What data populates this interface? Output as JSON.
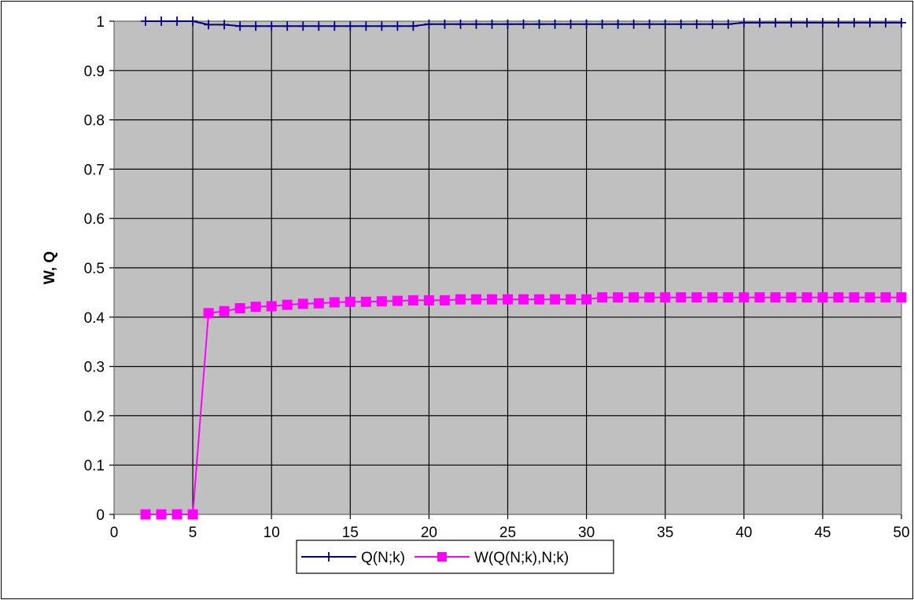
{
  "chart_data": {
    "type": "line",
    "title": "",
    "xlabel": "",
    "ylabel": "W, Q",
    "xlim": [
      0,
      50
    ],
    "ylim": [
      0,
      1
    ],
    "x_ticks": [
      "0",
      "5",
      "10",
      "15",
      "20",
      "25",
      "30",
      "35",
      "40",
      "45",
      "50"
    ],
    "y_ticks": [
      "0",
      "0.1",
      "0.2",
      "0.3",
      "0.4",
      "0.5",
      "0.6",
      "0.7",
      "0.8",
      "0.9",
      "1"
    ],
    "grid": true,
    "legend_position": "bottom",
    "x": [
      2,
      3,
      4,
      5,
      6,
      7,
      8,
      9,
      10,
      11,
      12,
      13,
      14,
      15,
      16,
      17,
      18,
      19,
      20,
      21,
      22,
      23,
      24,
      25,
      26,
      27,
      28,
      29,
      30,
      31,
      32,
      33,
      34,
      35,
      36,
      37,
      38,
      39,
      40,
      41,
      42,
      43,
      44,
      45,
      46,
      47,
      48,
      49,
      50
    ],
    "series": [
      {
        "name": "Q(N;k)",
        "color": "#000080",
        "marker": "plus",
        "values": [
          1,
          1,
          1,
          1,
          0.993,
          0.993,
          0.99,
          0.99,
          0.99,
          0.99,
          0.99,
          0.99,
          0.99,
          0.99,
          0.99,
          0.99,
          0.99,
          0.99,
          0.994,
          0.994,
          0.994,
          0.994,
          0.994,
          0.994,
          0.994,
          0.994,
          0.994,
          0.994,
          0.994,
          0.994,
          0.994,
          0.994,
          0.994,
          0.994,
          0.994,
          0.994,
          0.994,
          0.994,
          0.997,
          0.997,
          0.997,
          0.997,
          0.997,
          0.997,
          0.997,
          0.997,
          0.997,
          0.997,
          0.997
        ]
      },
      {
        "name": "W(Q(N;k),N;k)",
        "color": "#ff00ff",
        "marker": "square",
        "values": [
          0,
          0,
          0,
          0,
          0.408,
          0.412,
          0.418,
          0.421,
          0.422,
          0.425,
          0.427,
          0.428,
          0.43,
          0.431,
          0.431,
          0.432,
          0.433,
          0.434,
          0.434,
          0.434,
          0.436,
          0.436,
          0.436,
          0.436,
          0.436,
          0.436,
          0.436,
          0.436,
          0.436,
          0.44,
          0.44,
          0.44,
          0.44,
          0.44,
          0.44,
          0.44,
          0.44,
          0.44,
          0.44,
          0.44,
          0.44,
          0.44,
          0.44,
          0.44,
          0.44,
          0.44,
          0.44,
          0.44,
          0.44
        ]
      }
    ]
  }
}
